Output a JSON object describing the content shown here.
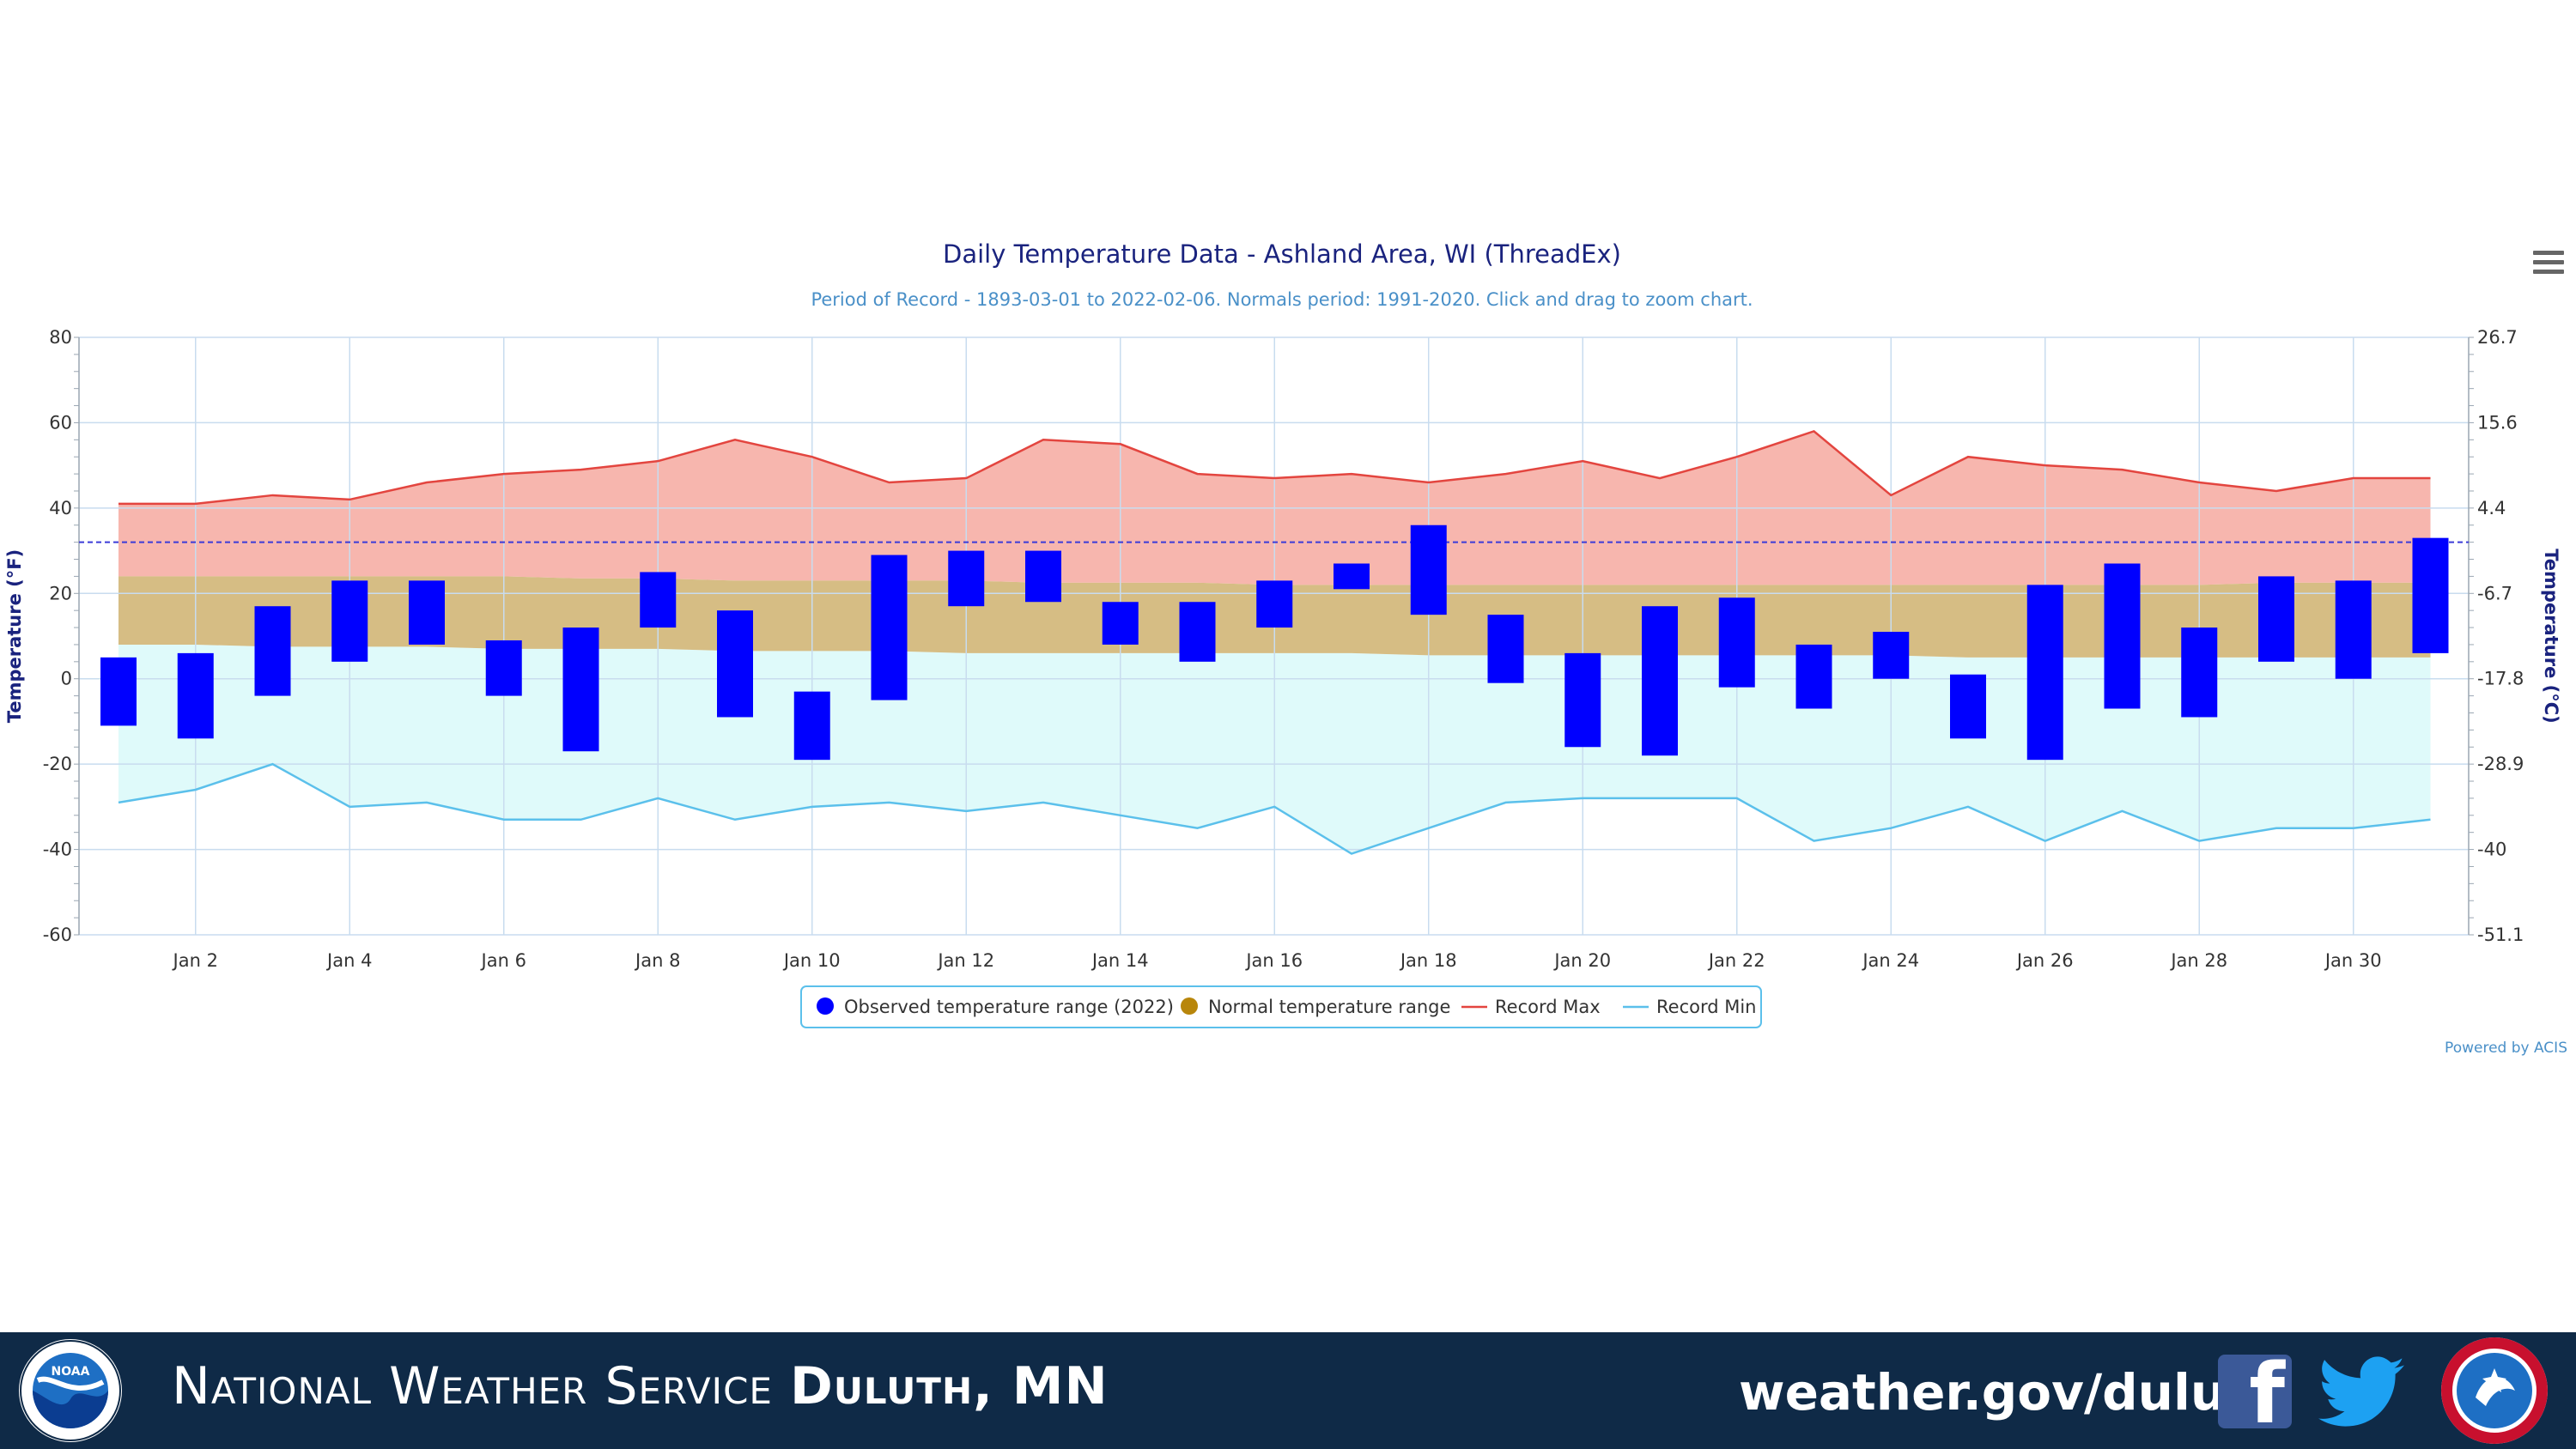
{
  "chart_data": {
    "type": "floating-bar-range",
    "title": "Daily Temperature Data - Ashland Area, WI (ThreadEx)",
    "subtitle": "Period of Record - 1893-03-01 to 2022-02-06. Normals period: 1991-2020. Click and drag to zoom chart.",
    "ylabel": "Temperature (°F)",
    "ylabel_right": "Temperature (°C)",
    "ylim": [
      -60,
      80
    ],
    "y_ticks": [
      80,
      60,
      40,
      20,
      0,
      -20,
      -40,
      -60
    ],
    "y_ticks_right": [
      "26.7",
      "15.6",
      "4.4",
      "-6.7",
      "-17.8",
      "-28.9",
      "-40",
      "-51.1"
    ],
    "x_tick_labels": [
      "Jan 2",
      "Jan 4",
      "Jan 6",
      "Jan 8",
      "Jan 10",
      "Jan 12",
      "Jan 14",
      "Jan 16",
      "Jan 18",
      "Jan 20",
      "Jan 22",
      "Jan 24",
      "Jan 26",
      "Jan 28",
      "Jan 30"
    ],
    "x_tick_days": [
      2,
      4,
      6,
      8,
      10,
      12,
      14,
      16,
      18,
      20,
      22,
      24,
      26,
      28,
      30
    ],
    "freezing_line": 32,
    "grid": true,
    "legend_placement": "bottom-center",
    "days": [
      1,
      2,
      3,
      4,
      5,
      6,
      7,
      8,
      9,
      10,
      11,
      12,
      13,
      14,
      15,
      16,
      17,
      18,
      19,
      20,
      21,
      22,
      23,
      24,
      25,
      26,
      27,
      28,
      29,
      30,
      31
    ],
    "series": [
      {
        "name": "Observed temperature range (2022)",
        "color": "#0000ff",
        "high": [
          5,
          6,
          17,
          23,
          23,
          9,
          12,
          25,
          16,
          -3,
          29,
          30,
          30,
          18,
          18,
          23,
          27,
          36,
          15,
          6,
          17,
          19,
          8,
          11,
          1,
          22,
          27,
          12,
          24,
          23,
          33
        ],
        "low": [
          -11,
          -14,
          -4,
          4,
          8,
          -4,
          -17,
          12,
          -9,
          -19,
          -5,
          17,
          18,
          8,
          4,
          12,
          21,
          15,
          -1,
          -16,
          -18,
          -2,
          -7,
          0,
          -14,
          -19,
          -7,
          -9,
          4,
          0,
          6
        ]
      },
      {
        "name": "Normal temperature range",
        "color": "#b8860b",
        "high": [
          24,
          24,
          24,
          24,
          24,
          24,
          23.5,
          23.5,
          23,
          23,
          23,
          23,
          22.5,
          22.5,
          22.5,
          22,
          22,
          22,
          22,
          22,
          22,
          22,
          22,
          22,
          22,
          22,
          22,
          22,
          22.5,
          22.5,
          22.5
        ],
        "low": [
          8,
          8,
          7.5,
          7.5,
          7.5,
          7,
          7,
          7,
          6.5,
          6.5,
          6.5,
          6,
          6,
          6,
          6,
          6,
          6,
          5.5,
          5.5,
          5.5,
          5.5,
          5.5,
          5.5,
          5.5,
          5,
          5,
          5,
          5,
          5,
          5,
          5
        ]
      },
      {
        "name": "Record Max",
        "color": "#e3453f",
        "values": [
          41,
          41,
          43,
          42,
          46,
          48,
          49,
          51,
          56,
          52,
          46,
          47,
          56,
          55,
          48,
          47,
          48,
          46,
          48,
          51,
          47,
          52,
          58,
          43,
          52,
          50,
          49,
          46,
          44,
          47,
          47
        ]
      },
      {
        "name": "Record Min",
        "color": "#5bc0eb",
        "values": [
          -29,
          -26,
          -20,
          -30,
          -29,
          -33,
          -33,
          -28,
          -33,
          -30,
          -29,
          -31,
          -29,
          -32,
          -35,
          -30,
          -41,
          -35,
          -29,
          -28,
          -28,
          -28,
          -38,
          -35,
          -30,
          -38,
          -31,
          -38,
          -35,
          -35,
          -33
        ]
      }
    ]
  },
  "legend": {
    "observed": "Observed temperature range (2022)",
    "normal": "Normal temperature range",
    "record_max": "Record Max",
    "record_min": "Record Min"
  },
  "credit": "Powered by ACIS",
  "colors": {
    "observed_bar": "#0000ff",
    "normal_band": "#d6bd84",
    "record_max_fill": "#f7b6ae",
    "record_min_fill": "#dffafa",
    "title": "#1a237e",
    "subtitle": "#4a90c8",
    "footer_bg": "#0f2a47"
  },
  "footer": {
    "org_prefix": "National Weather Service",
    "office": "Duluth, MN",
    "url": "weather.gov/duluth",
    "facebook_icon": "facebook-icon",
    "twitter_icon": "twitter-icon",
    "noaa_logo": "noaa-logo",
    "nws_logo": "nws-logo"
  }
}
